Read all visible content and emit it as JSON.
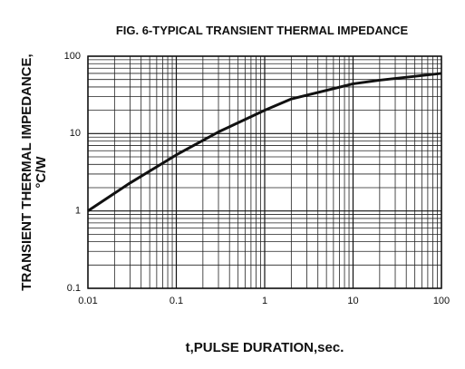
{
  "chart_data": {
    "type": "line",
    "title": "FIG. 6-TYPICAL TRANSIENT THERMAL IMPEDANCE",
    "x_label": "t,PULSE DURATION,sec.",
    "y_label": [
      "TRANSIENT THERMAL IMPEDANCE,",
      "°C/W"
    ],
    "x": [
      0.01,
      0.03,
      0.1,
      0.3,
      1,
      2,
      10,
      20,
      100
    ],
    "series": [
      {
        "color": "#111111",
        "values": [
          1,
          2.3,
          5.3,
          10.5,
          20,
          28,
          44,
          49,
          60
        ]
      }
    ],
    "xlim": [
      0.01,
      100
    ],
    "ylim": [
      0.1,
      100
    ],
    "xticks": [
      0.01,
      0.1,
      1,
      10,
      100
    ],
    "yticks": [
      0.1,
      1,
      10,
      100
    ],
    "xscale": "log",
    "yscale": "log",
    "grid": true,
    "minor_grid": true
  }
}
